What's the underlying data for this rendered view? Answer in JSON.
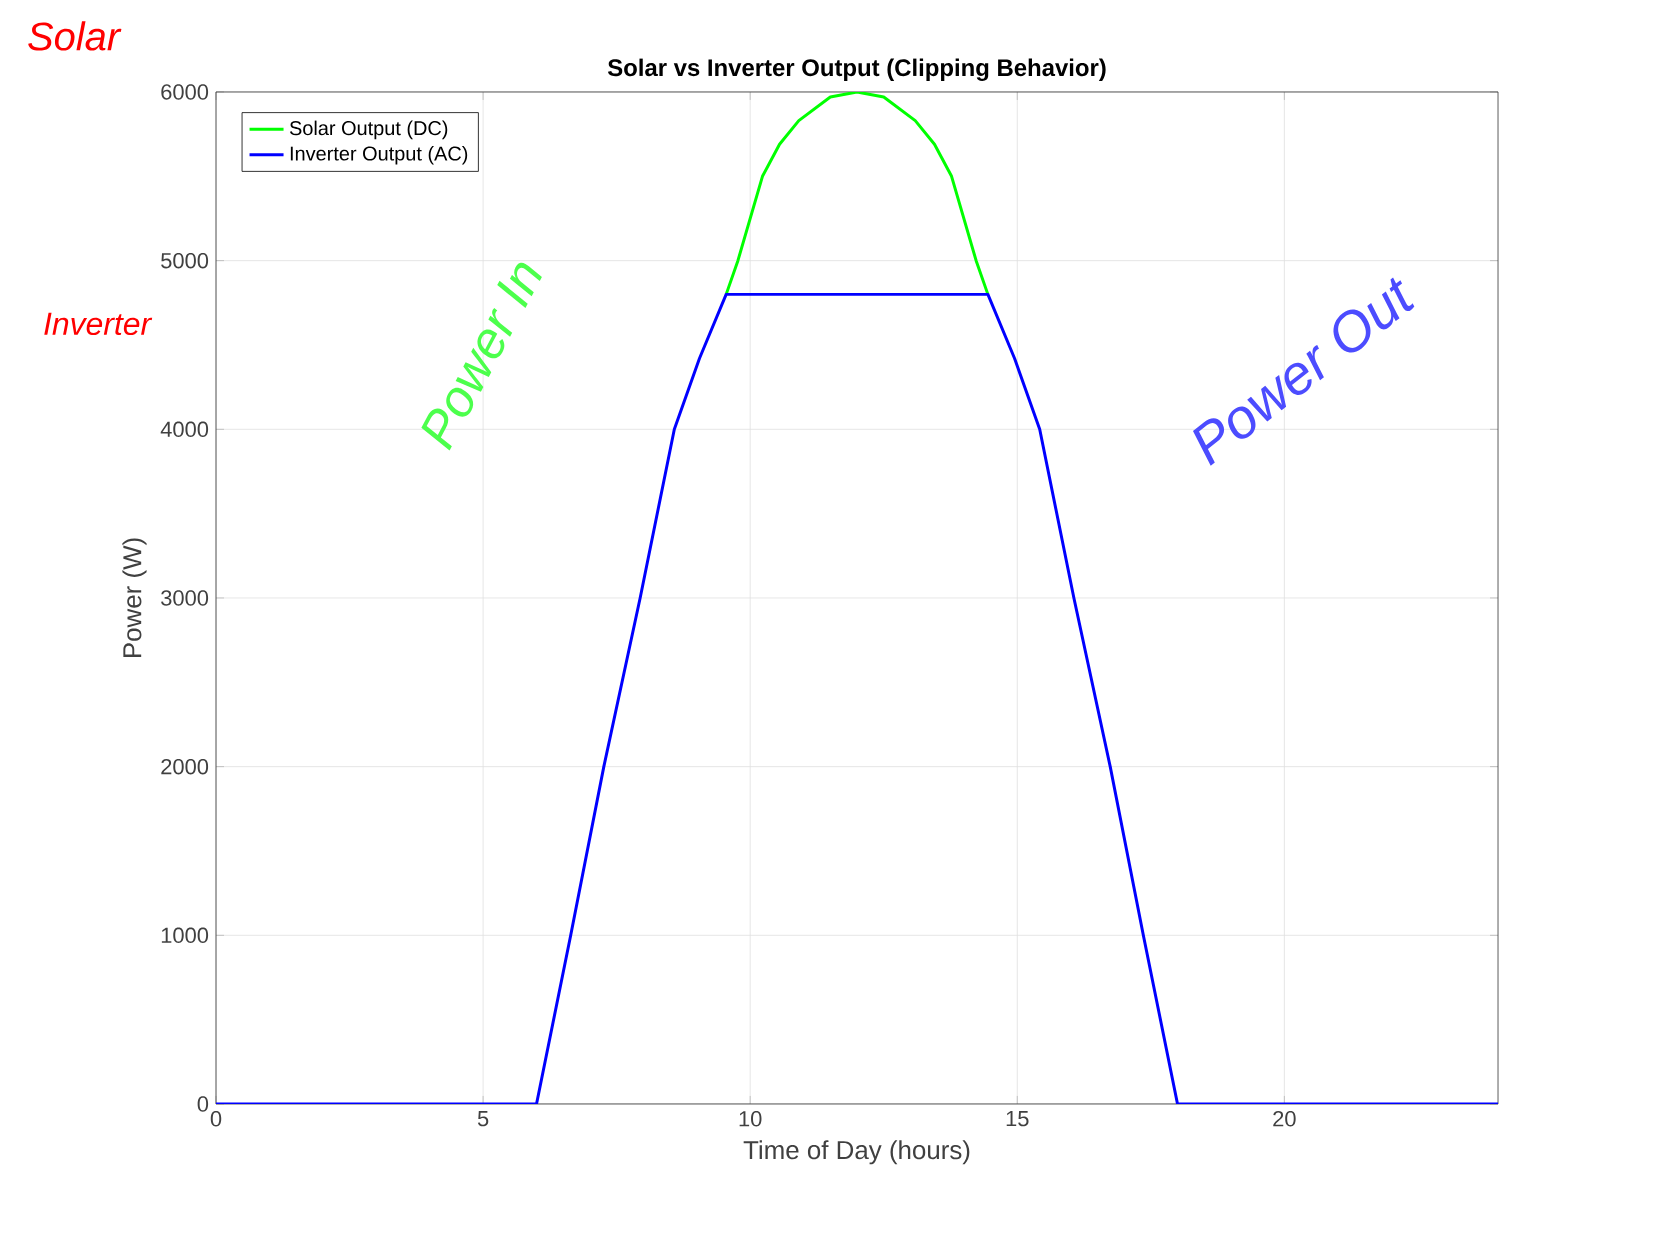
{
  "chart_data": {
    "type": "line",
    "title": "Solar vs Inverter Output (Clipping Behavior)",
    "xlabel": "Time of Day (hours)",
    "ylabel": "Power (W)",
    "xlim": [
      0,
      24
    ],
    "xticks": [
      0,
      5,
      10,
      15,
      20
    ],
    "ylim": [
      0,
      6000
    ],
    "yticks": [
      0,
      1000,
      2000,
      3000,
      4000,
      5000,
      6000
    ],
    "grid": true,
    "legend": "top left",
    "marker": "none",
    "line_style": "solid",
    "series": [
      {
        "name": "Solar Output (DC)",
        "color": "#00ff00",
        "x": [
          9.55,
          9.77,
          10.23,
          10.55,
          10.91,
          11.5,
          12,
          12.5,
          13.09,
          13.45,
          13.77,
          14.23,
          14.45
        ],
        "values": [
          4800,
          5000,
          5500,
          5690,
          5830,
          5970,
          6000,
          5970,
          5830,
          5690,
          5500,
          5000,
          4800
        ]
      },
      {
        "name": "Inverter Output (AC)",
        "color": "#0000ff",
        "x": [
          0,
          6,
          6.64,
          7.26,
          7.94,
          8.58,
          9.05,
          9.55,
          14.45,
          14.95,
          15.42,
          16.06,
          16.74,
          17.36,
          18,
          24
        ],
        "values": [
          0,
          0,
          1000,
          2000,
          3000,
          4000,
          4420,
          4800,
          4800,
          4420,
          4000,
          3000,
          2000,
          1000,
          0,
          0
        ]
      }
    ],
    "annotations": [
      "Solar",
      "Inverter",
      "Power In",
      "Power Out"
    ]
  }
}
